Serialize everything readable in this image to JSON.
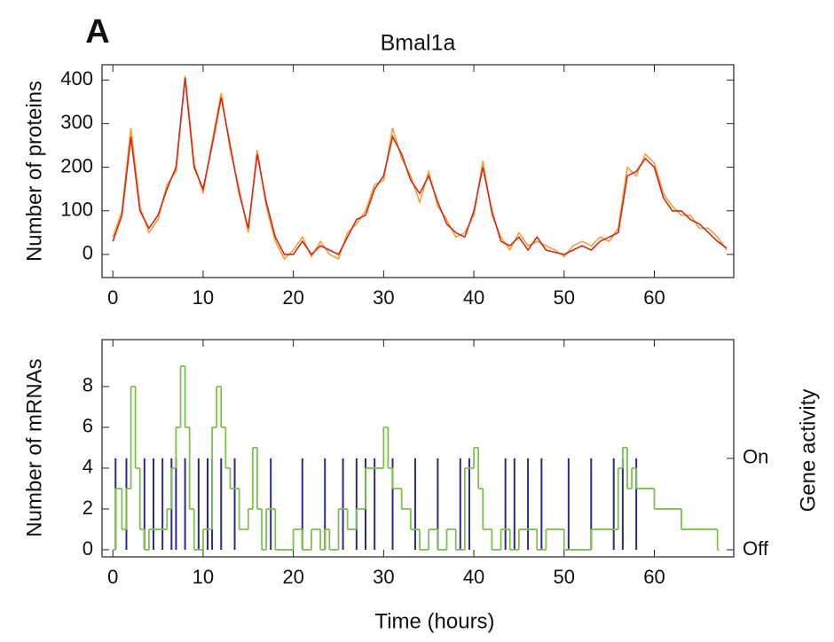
{
  "chart_data": [
    {
      "type": "line",
      "panel_label": "A",
      "title": "Bmal1a",
      "ylabel": "Number of proteins",
      "xlim": [
        -1.2,
        68.8
      ],
      "xticks": [
        0,
        10,
        20,
        30,
        40,
        50,
        60
      ],
      "ylim": [
        -53,
        435
      ],
      "yticks": [
        0,
        100,
        200,
        300,
        400
      ],
      "series": [
        {
          "color": "#f5a030",
          "x": [
            0,
            1,
            2,
            3,
            4,
            5,
            6,
            7,
            8,
            9,
            10,
            11,
            12,
            13,
            14,
            15,
            16,
            17,
            18,
            19,
            20,
            21,
            22,
            23,
            24,
            25,
            26,
            27,
            28,
            29,
            30,
            31,
            32,
            33,
            34,
            35,
            36,
            37,
            38,
            39,
            40,
            41,
            42,
            43,
            44,
            45,
            46,
            47,
            48,
            49,
            50,
            51,
            52,
            53,
            54,
            55,
            56,
            57,
            58,
            59,
            60,
            61,
            62,
            63,
            64,
            65,
            66,
            67,
            68
          ],
          "values": [
            40,
            100,
            290,
            110,
            50,
            80,
            160,
            190,
            410,
            210,
            140,
            260,
            370,
            240,
            150,
            50,
            240,
            110,
            30,
            -10,
            10,
            40,
            -5,
            30,
            0,
            -10,
            50,
            70,
            100,
            160,
            170,
            290,
            220,
            180,
            120,
            190,
            110,
            80,
            40,
            50,
            90,
            215,
            90,
            40,
            10,
            50,
            20,
            30,
            20,
            10,
            -5,
            20,
            30,
            20,
            40,
            30,
            60,
            200,
            180,
            230,
            210,
            140,
            110,
            90,
            90,
            60,
            60,
            40,
            10
          ]
        },
        {
          "color": "#d42a1a",
          "x": [
            0,
            1,
            2,
            3,
            4,
            5,
            6,
            7,
            8,
            9,
            10,
            11,
            12,
            13,
            14,
            15,
            16,
            17,
            18,
            19,
            20,
            21,
            22,
            23,
            24,
            25,
            26,
            27,
            28,
            29,
            30,
            31,
            32,
            33,
            34,
            35,
            36,
            37,
            38,
            39,
            40,
            41,
            42,
            43,
            44,
            45,
            46,
            47,
            48,
            49,
            50,
            51,
            52,
            53,
            54,
            55,
            56,
            57,
            58,
            59,
            60,
            61,
            62,
            63,
            64,
            65,
            66,
            67,
            68
          ],
          "values": [
            30,
            90,
            270,
            100,
            60,
            90,
            150,
            200,
            405,
            200,
            150,
            250,
            360,
            250,
            140,
            60,
            230,
            120,
            40,
            0,
            0,
            30,
            0,
            20,
            10,
            0,
            40,
            80,
            90,
            150,
            180,
            270,
            230,
            170,
            140,
            180,
            120,
            70,
            50,
            40,
            100,
            200,
            100,
            30,
            20,
            40,
            10,
            40,
            10,
            5,
            0,
            10,
            20,
            10,
            30,
            40,
            50,
            180,
            190,
            220,
            200,
            130,
            100,
            100,
            80,
            70,
            50,
            30,
            15
          ]
        }
      ]
    },
    {
      "type": "step",
      "ylabel": "Number of mRNAs",
      "y2label": "Gene activity",
      "xlabel": "Time (hours)",
      "xlim": [
        -1.2,
        68.8
      ],
      "xticks": [
        0,
        10,
        20,
        30,
        40,
        50,
        60
      ],
      "ylim": [
        -0.35,
        10.3
      ],
      "yticks": [
        0,
        2,
        4,
        6,
        8
      ],
      "y2lim": [
        -0.078,
        2.3
      ],
      "y2ticks": [
        {
          "value": 0,
          "label": "Off"
        },
        {
          "value": 1,
          "label": "On"
        }
      ],
      "series": [
        {
          "color": "#2a2a8c",
          "axis": "y2",
          "drawstyle": "stems",
          "x": [
            0.3,
            1.5,
            3.5,
            4.5,
            5.5,
            6.5,
            7,
            8,
            9.5,
            10.5,
            11,
            12,
            13.5,
            17.5,
            21,
            23.5,
            25.5,
            27,
            28,
            29,
            31,
            33.5,
            36,
            38.5,
            39.5,
            43.5,
            44.5,
            46,
            47.5,
            50.5,
            53,
            55.5,
            56.5,
            58
          ],
          "values": [
            1,
            1,
            1,
            1,
            1,
            1,
            1,
            1,
            1,
            1,
            1,
            1,
            1,
            1,
            1,
            1,
            1,
            1,
            1,
            1,
            1,
            1,
            1,
            1,
            1,
            1,
            1,
            1,
            1,
            1,
            1,
            1,
            1,
            1
          ]
        },
        {
          "color": "#7cc34a",
          "drawstyle": "steps-post",
          "x": [
            0,
            0.3,
            1,
            1.5,
            2,
            2.5,
            3,
            3.5,
            4,
            6,
            6.5,
            7,
            7.5,
            8,
            8.5,
            9,
            10,
            11,
            11.5,
            12,
            12.5,
            13,
            14,
            15,
            15.5,
            16,
            16.5,
            17,
            18,
            20,
            21,
            22,
            23,
            23.5,
            24,
            25,
            26,
            27,
            28,
            30,
            30.5,
            31,
            32,
            33,
            34,
            35,
            36,
            37,
            38,
            39,
            40,
            40.5,
            41,
            42,
            43,
            44,
            45,
            47,
            48,
            50,
            53,
            56,
            56.5,
            57,
            57.5,
            58,
            60,
            63,
            67
          ],
          "values": [
            0,
            3,
            1,
            3,
            8,
            4,
            1,
            0,
            1,
            2,
            4,
            6,
            9,
            6,
            2,
            0,
            1,
            6,
            8,
            6,
            4,
            3,
            1,
            2,
            5,
            2,
            0,
            2,
            0,
            1,
            0,
            1,
            0,
            1,
            0,
            2,
            1,
            2,
            4,
            6,
            4,
            3,
            2,
            1,
            0,
            1,
            0,
            1,
            0,
            4,
            5,
            3,
            1,
            0,
            1,
            0,
            1,
            0,
            1,
            0,
            1,
            4,
            5,
            3,
            4,
            3,
            2,
            1,
            0
          ]
        }
      ]
    }
  ]
}
